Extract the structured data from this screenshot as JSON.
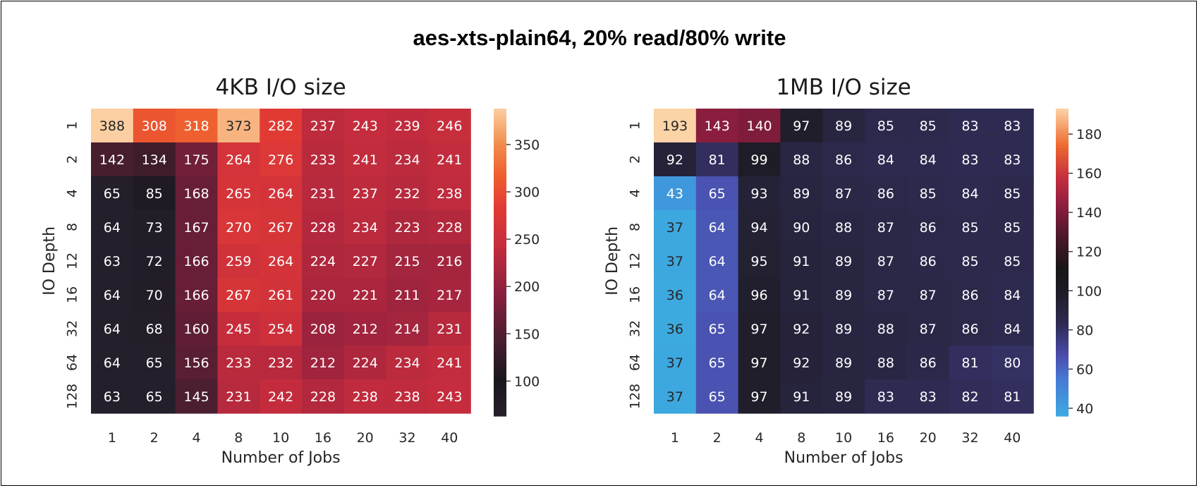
{
  "title": "aes-xts-plain64, 20% read/80% write",
  "chart_data": [
    {
      "type": "heatmap",
      "title": "4KB I/O size",
      "xlabel": "Number of Jobs",
      "ylabel": "IO Depth",
      "x": [
        "1",
        "2",
        "4",
        "8",
        "10",
        "16",
        "20",
        "32",
        "40"
      ],
      "y": [
        "1",
        "2",
        "4",
        "8",
        "12",
        "16",
        "32",
        "64",
        "128"
      ],
      "values": [
        [
          388,
          308,
          318,
          373,
          282,
          237,
          243,
          239,
          246
        ],
        [
          142,
          134,
          175,
          264,
          276,
          233,
          241,
          234,
          241
        ],
        [
          65,
          85,
          168,
          265,
          264,
          231,
          237,
          232,
          238
        ],
        [
          64,
          73,
          167,
          270,
          267,
          228,
          234,
          223,
          228
        ],
        [
          63,
          72,
          166,
          259,
          264,
          224,
          227,
          215,
          216
        ],
        [
          64,
          70,
          166,
          267,
          261,
          220,
          221,
          211,
          217
        ],
        [
          64,
          68,
          160,
          245,
          254,
          208,
          212,
          214,
          231
        ],
        [
          64,
          65,
          156,
          233,
          232,
          212,
          224,
          234,
          241
        ],
        [
          63,
          65,
          145,
          231,
          242,
          228,
          238,
          238,
          243
        ]
      ],
      "colormap": "rocket",
      "vmin": 63,
      "vmax": 388,
      "colorbar_ticks": [
        100,
        150,
        200,
        250,
        300,
        350
      ]
    },
    {
      "type": "heatmap",
      "title": "1MB I/O size",
      "xlabel": "Number of Jobs",
      "ylabel": "IO Depth",
      "x": [
        "1",
        "2",
        "4",
        "8",
        "10",
        "16",
        "20",
        "32",
        "40"
      ],
      "y": [
        "1",
        "2",
        "4",
        "8",
        "12",
        "16",
        "32",
        "64",
        "128"
      ],
      "values": [
        [
          193,
          143,
          140,
          97,
          89,
          85,
          85,
          83,
          83
        ],
        [
          92,
          81,
          99,
          88,
          86,
          84,
          84,
          83,
          83
        ],
        [
          43,
          65,
          93,
          89,
          87,
          86,
          85,
          84,
          85
        ],
        [
          37,
          64,
          94,
          90,
          88,
          87,
          86,
          85,
          85
        ],
        [
          37,
          64,
          95,
          91,
          89,
          87,
          86,
          85,
          85
        ],
        [
          36,
          64,
          96,
          91,
          89,
          87,
          87,
          86,
          84
        ],
        [
          36,
          65,
          97,
          92,
          89,
          88,
          87,
          86,
          84
        ],
        [
          37,
          65,
          97,
          92,
          89,
          88,
          86,
          81,
          80
        ],
        [
          37,
          65,
          97,
          91,
          89,
          83,
          83,
          82,
          81
        ]
      ],
      "colormap": "icefire",
      "vmin": 36,
      "vmax": 193,
      "colorbar_ticks": [
        40,
        60,
        80,
        100,
        120,
        140,
        160,
        180
      ]
    }
  ]
}
